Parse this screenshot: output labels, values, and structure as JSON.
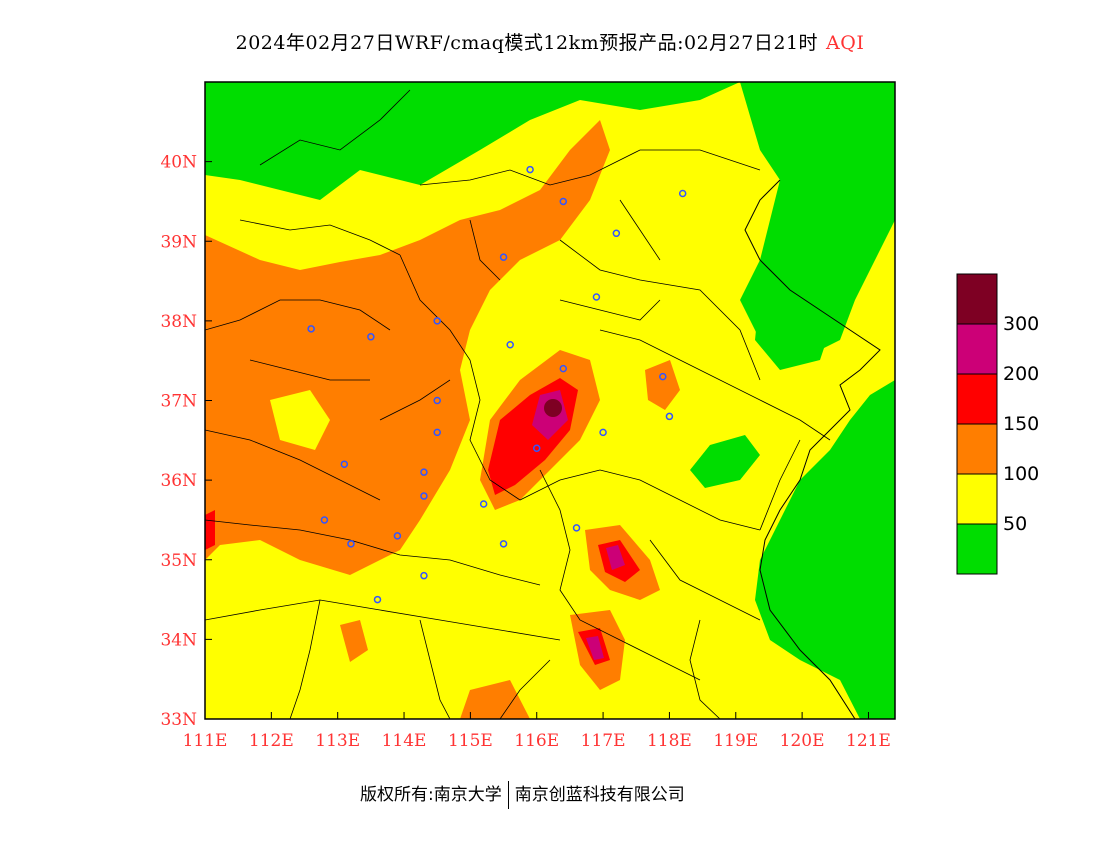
{
  "title": {
    "main": "2024年02月27日WRF/cmaq模式12km预报产品:02月27日21时",
    "variable": "AQI"
  },
  "footer": {
    "copyright": "版权所有:南京大学",
    "company": "南京创蓝科技有限公司"
  },
  "map": {
    "lon_range": [
      111,
      121.4
    ],
    "lat_range": [
      33,
      41
    ],
    "lon_ticks": [
      {
        "value": 111,
        "label": "111E"
      },
      {
        "value": 112,
        "label": "112E"
      },
      {
        "value": 113,
        "label": "113E"
      },
      {
        "value": 114,
        "label": "114E"
      },
      {
        "value": 115,
        "label": "115E"
      },
      {
        "value": 116,
        "label": "116E"
      },
      {
        "value": 117,
        "label": "117E"
      },
      {
        "value": 118,
        "label": "118E"
      },
      {
        "value": 119,
        "label": "119E"
      },
      {
        "value": 120,
        "label": "120E"
      },
      {
        "value": 121,
        "label": "121E"
      }
    ],
    "lat_ticks": [
      {
        "value": 33,
        "label": "33N"
      },
      {
        "value": 34,
        "label": "34N"
      },
      {
        "value": 35,
        "label": "35N"
      },
      {
        "value": 36,
        "label": "36N"
      },
      {
        "value": 37,
        "label": "37N"
      },
      {
        "value": 38,
        "label": "38N"
      },
      {
        "value": 39,
        "label": "39N"
      },
      {
        "value": 40,
        "label": "40N"
      }
    ],
    "tick_color": "#ff3333"
  },
  "legend": {
    "colors": [
      "#00dd00",
      "#ffff00",
      "#ff7e00",
      "#ff0000",
      "#cc0077",
      "#7e0023"
    ],
    "labels": [
      "50",
      "100",
      "150",
      "200",
      "300"
    ]
  },
  "palette": {
    "good": "#00dd00",
    "moderate": "#ffff00",
    "sensitive": "#ff7e00",
    "unhealthy": "#ff0000",
    "very_unhealthy": "#cc0077",
    "hazardous": "#7e0023",
    "city_marker": "#3355ff"
  },
  "cities": [
    [
      115.9,
      39.9
    ],
    [
      116.4,
      39.5
    ],
    [
      117.2,
      39.1
    ],
    [
      118.2,
      39.6
    ],
    [
      115.5,
      38.8
    ],
    [
      116.9,
      38.3
    ],
    [
      115.6,
      37.7
    ],
    [
      116.4,
      37.4
    ],
    [
      112.6,
      37.9
    ],
    [
      113.5,
      37.8
    ],
    [
      114.5,
      38.0
    ],
    [
      114.5,
      37.0
    ],
    [
      114.5,
      36.6
    ],
    [
      113.1,
      36.2
    ],
    [
      114.3,
      36.1
    ],
    [
      115.2,
      35.7
    ],
    [
      114.3,
      35.8
    ],
    [
      112.8,
      35.5
    ],
    [
      113.2,
      35.2
    ],
    [
      113.9,
      35.3
    ],
    [
      115.5,
      35.2
    ],
    [
      116.6,
      35.4
    ],
    [
      114.3,
      34.8
    ],
    [
      113.6,
      34.5
    ],
    [
      117.9,
      37.3
    ],
    [
      118.0,
      36.8
    ],
    [
      117.0,
      36.6
    ],
    [
      116.0,
      36.4
    ]
  ]
}
